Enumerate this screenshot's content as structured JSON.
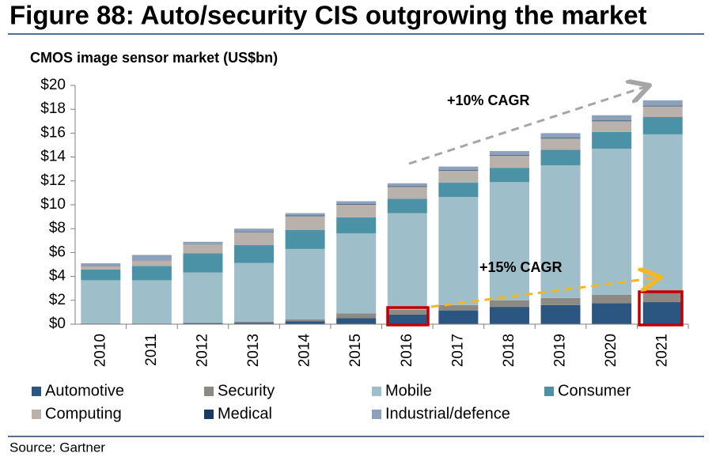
{
  "chart_data": {
    "type": "stacked_bar",
    "title": "Figure 88: Auto/security CIS outgrowing the market",
    "subtitle": "CMOS image sensor market (US$bn)",
    "source": "Source: Gartner",
    "annotations": [
      "+10% CAGR",
      "+15% CAGR"
    ],
    "categories": [
      "2010",
      "2011",
      "2012",
      "2013",
      "2014",
      "2015",
      "2016",
      "2017",
      "2018",
      "2019",
      "2020",
      "2021"
    ],
    "series": [
      {
        "name": "Automotive",
        "color": "#2b5682",
        "values": [
          0.05,
          0.05,
          0.08,
          0.12,
          0.25,
          0.5,
          0.8,
          1.15,
          1.45,
          1.6,
          1.75,
          1.85
        ]
      },
      {
        "name": "Security",
        "color": "#8d8985",
        "values": [
          0.03,
          0.03,
          0.05,
          0.1,
          0.15,
          0.4,
          0.4,
          0.45,
          0.55,
          0.6,
          0.7,
          0.8
        ]
      },
      {
        "name": "Mobile",
        "color": "#9ebfc9",
        "values": [
          3.6,
          3.6,
          4.2,
          4.9,
          5.9,
          6.7,
          8.1,
          9.05,
          9.9,
          11.1,
          12.25,
          13.25
        ]
      },
      {
        "name": "Consumer",
        "color": "#4b92a7",
        "values": [
          0.9,
          1.2,
          1.6,
          1.5,
          1.6,
          1.35,
          1.2,
          1.2,
          1.2,
          1.3,
          1.4,
          1.45
        ]
      },
      {
        "name": "Computing",
        "color": "#b9b2ac",
        "values": [
          0.3,
          0.45,
          0.75,
          1.1,
          1.15,
          1.05,
          1.0,
          1.0,
          1.0,
          0.95,
          0.9,
          0.9
        ]
      },
      {
        "name": "Medical",
        "color": "#1b3a63",
        "values": [
          0.02,
          0.02,
          0.02,
          0.03,
          0.05,
          0.05,
          0.05,
          0.05,
          0.05,
          0.05,
          0.05,
          0.05
        ]
      },
      {
        "name": "Industrial/defence",
        "color": "#8da1bb",
        "values": [
          0.2,
          0.45,
          0.2,
          0.25,
          0.2,
          0.25,
          0.25,
          0.3,
          0.35,
          0.4,
          0.45,
          0.45
        ]
      }
    ],
    "ylim": [
      0,
      20
    ],
    "yticks": [
      {
        "value": 0,
        "label": "$0"
      },
      {
        "value": 2,
        "label": "$2"
      },
      {
        "value": 4,
        "label": "$4"
      },
      {
        "value": 6,
        "label": "$6"
      },
      {
        "value": 8,
        "label": "$8"
      },
      {
        "value": 10,
        "label": "$10"
      },
      {
        "value": 12,
        "label": "$12"
      },
      {
        "value": 14,
        "label": "$14"
      },
      {
        "value": 16,
        "label": "$16"
      },
      {
        "value": 18,
        "label": "$18"
      },
      {
        "value": 20,
        "label": "$20"
      }
    ],
    "grid": false
  }
}
